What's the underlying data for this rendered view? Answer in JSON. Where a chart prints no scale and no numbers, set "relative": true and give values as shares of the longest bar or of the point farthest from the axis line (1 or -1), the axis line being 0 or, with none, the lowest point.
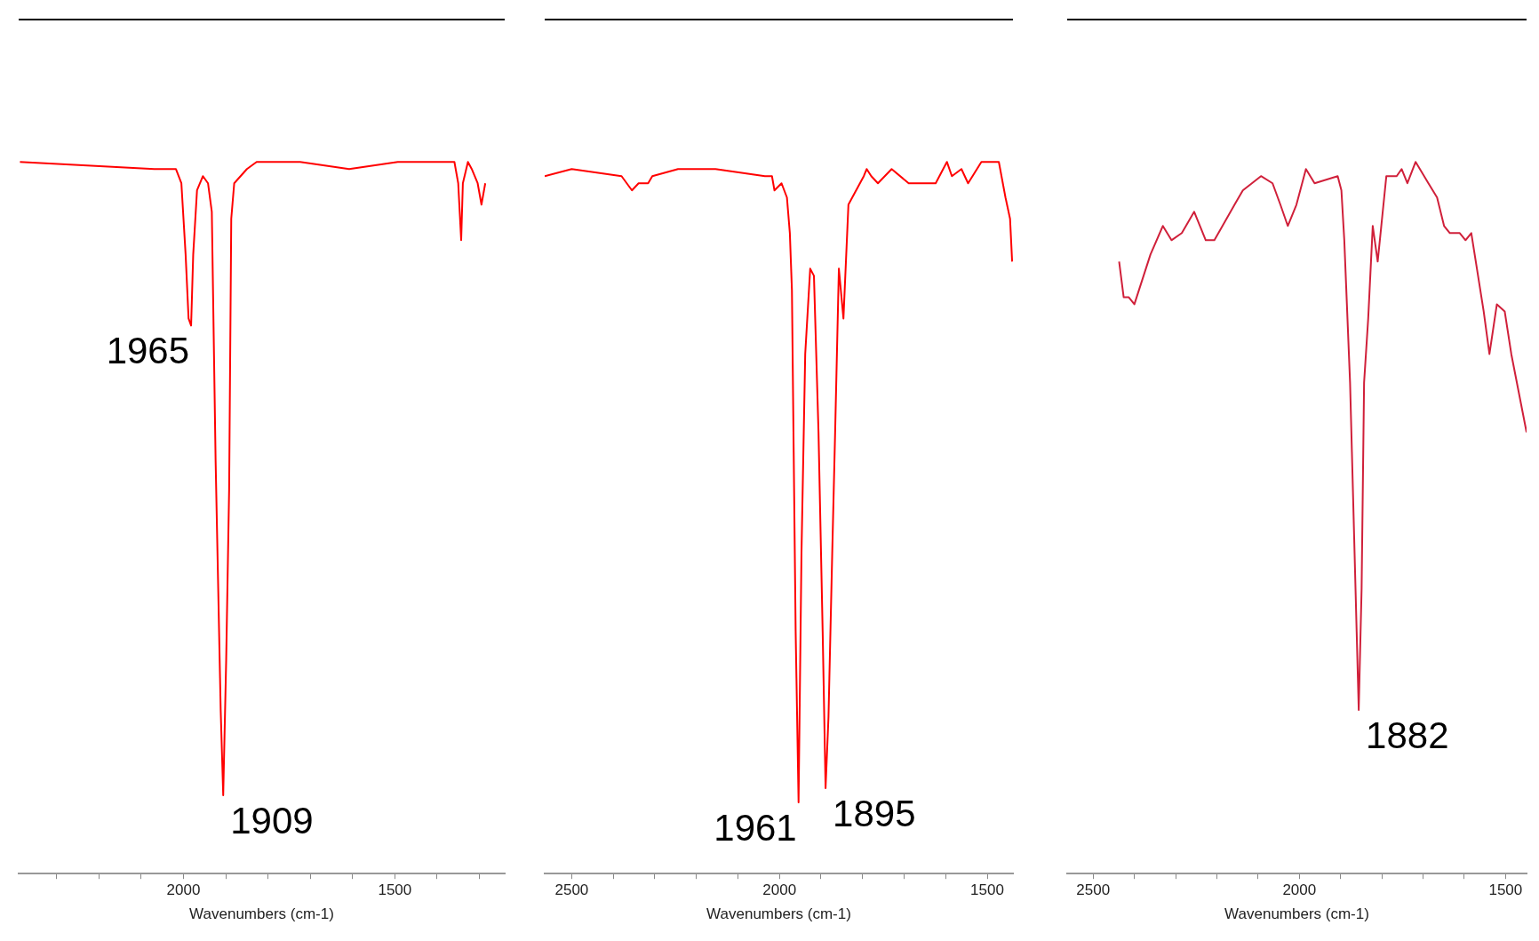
{
  "chart_data": [
    {
      "type": "line",
      "xlabel": "Wavenumbers (cm-1)",
      "relative": true,
      "marker": "none",
      "xlim": [
        2390,
        1240
      ],
      "xticks": [
        {
          "value": 2300,
          "label": null
        },
        {
          "value": 2200,
          "label": null
        },
        {
          "value": 2100,
          "label": null
        },
        2000,
        {
          "value": 1900,
          "label": null
        },
        {
          "value": 1800,
          "label": null
        },
        {
          "value": 1700,
          "label": null
        },
        {
          "value": 1600,
          "label": null
        },
        1500,
        {
          "value": 1400,
          "label": null
        },
        {
          "value": 1300,
          "label": null
        }
      ],
      "series": [
        {
          "color": "#ff0000",
          "x": [
            2387,
            2069,
            2018,
            2005,
            1995,
            1988,
            1982,
            1977,
            1968,
            1954,
            1942,
            1933,
            1924,
            1912,
            1906,
            1899,
            1892,
            1887,
            1880,
            1850,
            1827,
            1724,
            1608,
            1493,
            1401,
            1359,
            1350,
            1343,
            1339,
            1327,
            1318,
            1304,
            1295,
            1286
          ],
          "values": [
            1.0,
            0.99,
            0.99,
            0.97,
            0.87,
            0.78,
            0.77,
            0.87,
            0.96,
            0.98,
            0.97,
            0.93,
            0.58,
            0.23,
            0.11,
            0.3,
            0.54,
            0.92,
            0.97,
            0.99,
            1.0,
            1.0,
            0.99,
            1.0,
            1.0,
            1.0,
            0.97,
            0.89,
            0.97,
            1.0,
            0.99,
            0.97,
            0.94,
            0.97
          ]
        }
      ],
      "annotations": [
        {
          "text": "1965",
          "x": 1982,
          "y": 0.77
        },
        {
          "text": "1909",
          "x": 1906,
          "y": 0.11
        }
      ]
    },
    {
      "type": "line",
      "xlabel": "Wavenumbers (cm-1)",
      "relative": true,
      "marker": "none",
      "xlim": [
        2565,
        1438
      ],
      "xticks": [
        2500,
        {
          "value": 2400,
          "label": null
        },
        {
          "value": 2300,
          "label": null
        },
        {
          "value": 2200,
          "label": null
        },
        {
          "value": 2100,
          "label": null
        },
        2000,
        {
          "value": 1900,
          "label": null
        },
        {
          "value": 1800,
          "label": null
        },
        {
          "value": 1700,
          "label": null
        },
        {
          "value": 1600,
          "label": null
        },
        1500
      ],
      "series": [
        {
          "color": "#ff0000",
          "x": [
            2565,
            2500,
            2380,
            2355,
            2339,
            2316,
            2306,
            2244,
            2154,
            2035,
            2018,
            2012,
            1995,
            1982,
            1975,
            1970,
            1961,
            1954,
            1947,
            1938,
            1926,
            1917,
            1906,
            1896,
            1889,
            1882,
            1873,
            1866,
            1857,
            1846,
            1834,
            1797,
            1790,
            1779,
            1763,
            1730,
            1689,
            1673,
            1624,
            1597,
            1585,
            1562,
            1546,
            1514,
            1486,
            1472,
            1456,
            1445,
            1440
          ],
          "values": [
            0.98,
            0.99,
            0.98,
            0.96,
            0.97,
            0.97,
            0.98,
            0.99,
            0.99,
            0.98,
            0.98,
            0.96,
            0.97,
            0.95,
            0.9,
            0.82,
            0.34,
            0.1,
            0.45,
            0.73,
            0.85,
            0.84,
            0.62,
            0.34,
            0.12,
            0.22,
            0.45,
            0.62,
            0.85,
            0.78,
            0.94,
            0.98,
            0.99,
            0.98,
            0.97,
            0.99,
            0.97,
            0.97,
            0.97,
            1.0,
            0.98,
            0.99,
            0.97,
            1.0,
            1.0,
            1.0,
            0.95,
            0.92,
            0.86
          ]
        }
      ],
      "annotations": [
        {
          "text": "1961",
          "x": 1954,
          "y": 0.1
        },
        {
          "text": "1895",
          "x": 1889,
          "y": 0.12
        }
      ]
    },
    {
      "type": "line",
      "xlabel": "Wavenumbers (cm-1)",
      "relative": true,
      "marker": "none",
      "xlim": [
        2563,
        1449
      ],
      "xticks": [
        2500,
        {
          "value": 2400,
          "label": null
        },
        {
          "value": 2300,
          "label": null
        },
        {
          "value": 2200,
          "label": null
        },
        {
          "value": 2100,
          "label": null
        },
        2000,
        {
          "value": 1900,
          "label": null
        },
        {
          "value": 1800,
          "label": null
        },
        {
          "value": 1700,
          "label": null
        },
        {
          "value": 1600,
          "label": null
        },
        1500
      ],
      "series": [
        {
          "color": "#d0203a",
          "x": [
            2437,
            2426,
            2414,
            2400,
            2361,
            2331,
            2310,
            2285,
            2255,
            2227,
            2206,
            2157,
            2137,
            2093,
            2065,
            2046,
            2028,
            2007,
            1984,
            1963,
            1907,
            1898,
            1891,
            1877,
            1861,
            1856,
            1849,
            1843,
            1833,
            1822,
            1810,
            1789,
            1764,
            1752,
            1738,
            1718,
            1687,
            1666,
            1649,
            1635,
            1611,
            1597,
            1583,
            1553,
            1539,
            1521,
            1502,
            1486,
            1449
          ],
          "values": [
            0.86,
            0.81,
            0.81,
            0.8,
            0.87,
            0.91,
            0.89,
            0.9,
            0.93,
            0.89,
            0.89,
            0.94,
            0.96,
            0.98,
            0.97,
            0.94,
            0.91,
            0.94,
            0.99,
            0.97,
            0.98,
            0.96,
            0.89,
            0.69,
            0.34,
            0.23,
            0.4,
            0.69,
            0.78,
            0.91,
            0.86,
            0.98,
            0.98,
            0.99,
            0.97,
            1.0,
            0.97,
            0.95,
            0.91,
            0.9,
            0.9,
            0.89,
            0.9,
            0.79,
            0.73,
            0.8,
            0.79,
            0.73,
            0.62
          ]
        }
      ],
      "annotations": [
        {
          "text": "1882",
          "x": 1856,
          "y": 0.23
        }
      ]
    }
  ]
}
